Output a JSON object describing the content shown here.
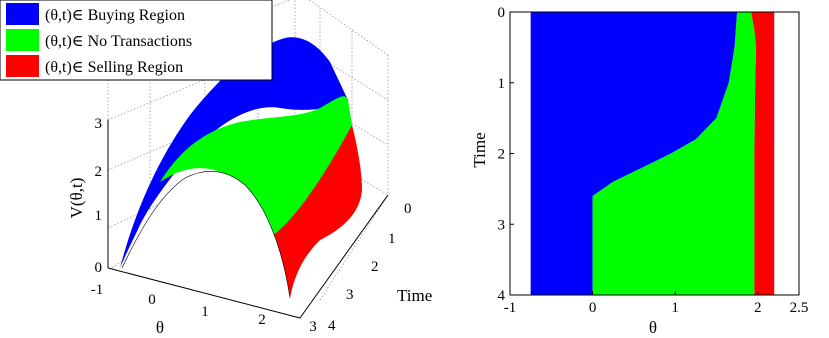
{
  "legend": {
    "items": [
      {
        "label": "(θ,t)∈ Buying Region",
        "color": "#0000ff"
      },
      {
        "label": "(θ,t)∈ No Transactions",
        "color": "#00ff00"
      },
      {
        "label": "(θ,t)∈ Selling Region",
        "color": "#ff0000"
      }
    ]
  },
  "chart_data": [
    {
      "type": "surface",
      "zlabel": "V(θ,t)",
      "xlabel": "θ",
      "ylabel": "Time",
      "x_ticks": [
        "-1",
        "0",
        "1",
        "2",
        "3"
      ],
      "y_ticks": [
        "0",
        "1",
        "2",
        "3",
        "4"
      ],
      "z_ticks": [
        "0",
        "1",
        "2",
        "3"
      ],
      "xlim": [
        -1,
        3
      ],
      "ylim": [
        0,
        4
      ],
      "zlim": [
        0,
        3.3
      ],
      "surface": "V(θ,t) ≈ concave parabola in θ, peak ≈ 3.3 near θ≈1.0, zero near θ≈-0.7 and θ≈2.2",
      "regions": [
        {
          "name": "Buying Region",
          "color": "#0000ff"
        },
        {
          "name": "No Transactions",
          "color": "#00ff00"
        },
        {
          "name": "Selling Region",
          "color": "#ff0000"
        }
      ]
    },
    {
      "type": "region_map",
      "xlabel": "θ",
      "ylabel": "Time",
      "x_ticks": [
        "-1",
        "0",
        "1",
        "2",
        "2.5"
      ],
      "y_ticks": [
        "0",
        "1",
        "2",
        "3",
        "4"
      ],
      "xlim": [
        -1,
        2.5
      ],
      "ylim": [
        0,
        4
      ],
      "y_reversed": true,
      "domain_theta": [
        -0.75,
        2.2
      ],
      "boundaries": {
        "buy_no_transaction": [
          {
            "t": 0.0,
            "theta": 1.75
          },
          {
            "t": 0.5,
            "theta": 1.72
          },
          {
            "t": 1.0,
            "theta": 1.65
          },
          {
            "t": 1.5,
            "theta": 1.5
          },
          {
            "t": 1.8,
            "theta": 1.25
          },
          {
            "t": 2.0,
            "theta": 0.95
          },
          {
            "t": 2.2,
            "theta": 0.6
          },
          {
            "t": 2.4,
            "theta": 0.25
          },
          {
            "t": 2.6,
            "theta": 0.0
          },
          {
            "t": 4.0,
            "theta": 0.0
          }
        ],
        "no_transaction_sell": [
          {
            "t": 0.0,
            "theta": 1.92
          },
          {
            "t": 0.25,
            "theta": 1.96
          },
          {
            "t": 0.5,
            "theta": 1.98
          },
          {
            "t": 1.0,
            "theta": 1.97
          },
          {
            "t": 2.0,
            "theta": 1.96
          },
          {
            "t": 3.0,
            "theta": 1.96
          },
          {
            "t": 4.0,
            "theta": 1.96
          }
        ]
      },
      "regions": [
        {
          "name": "Buying Region",
          "color": "#0000ff"
        },
        {
          "name": "No Transactions",
          "color": "#00ff00"
        },
        {
          "name": "Selling Region",
          "color": "#ff0000"
        }
      ]
    }
  ]
}
